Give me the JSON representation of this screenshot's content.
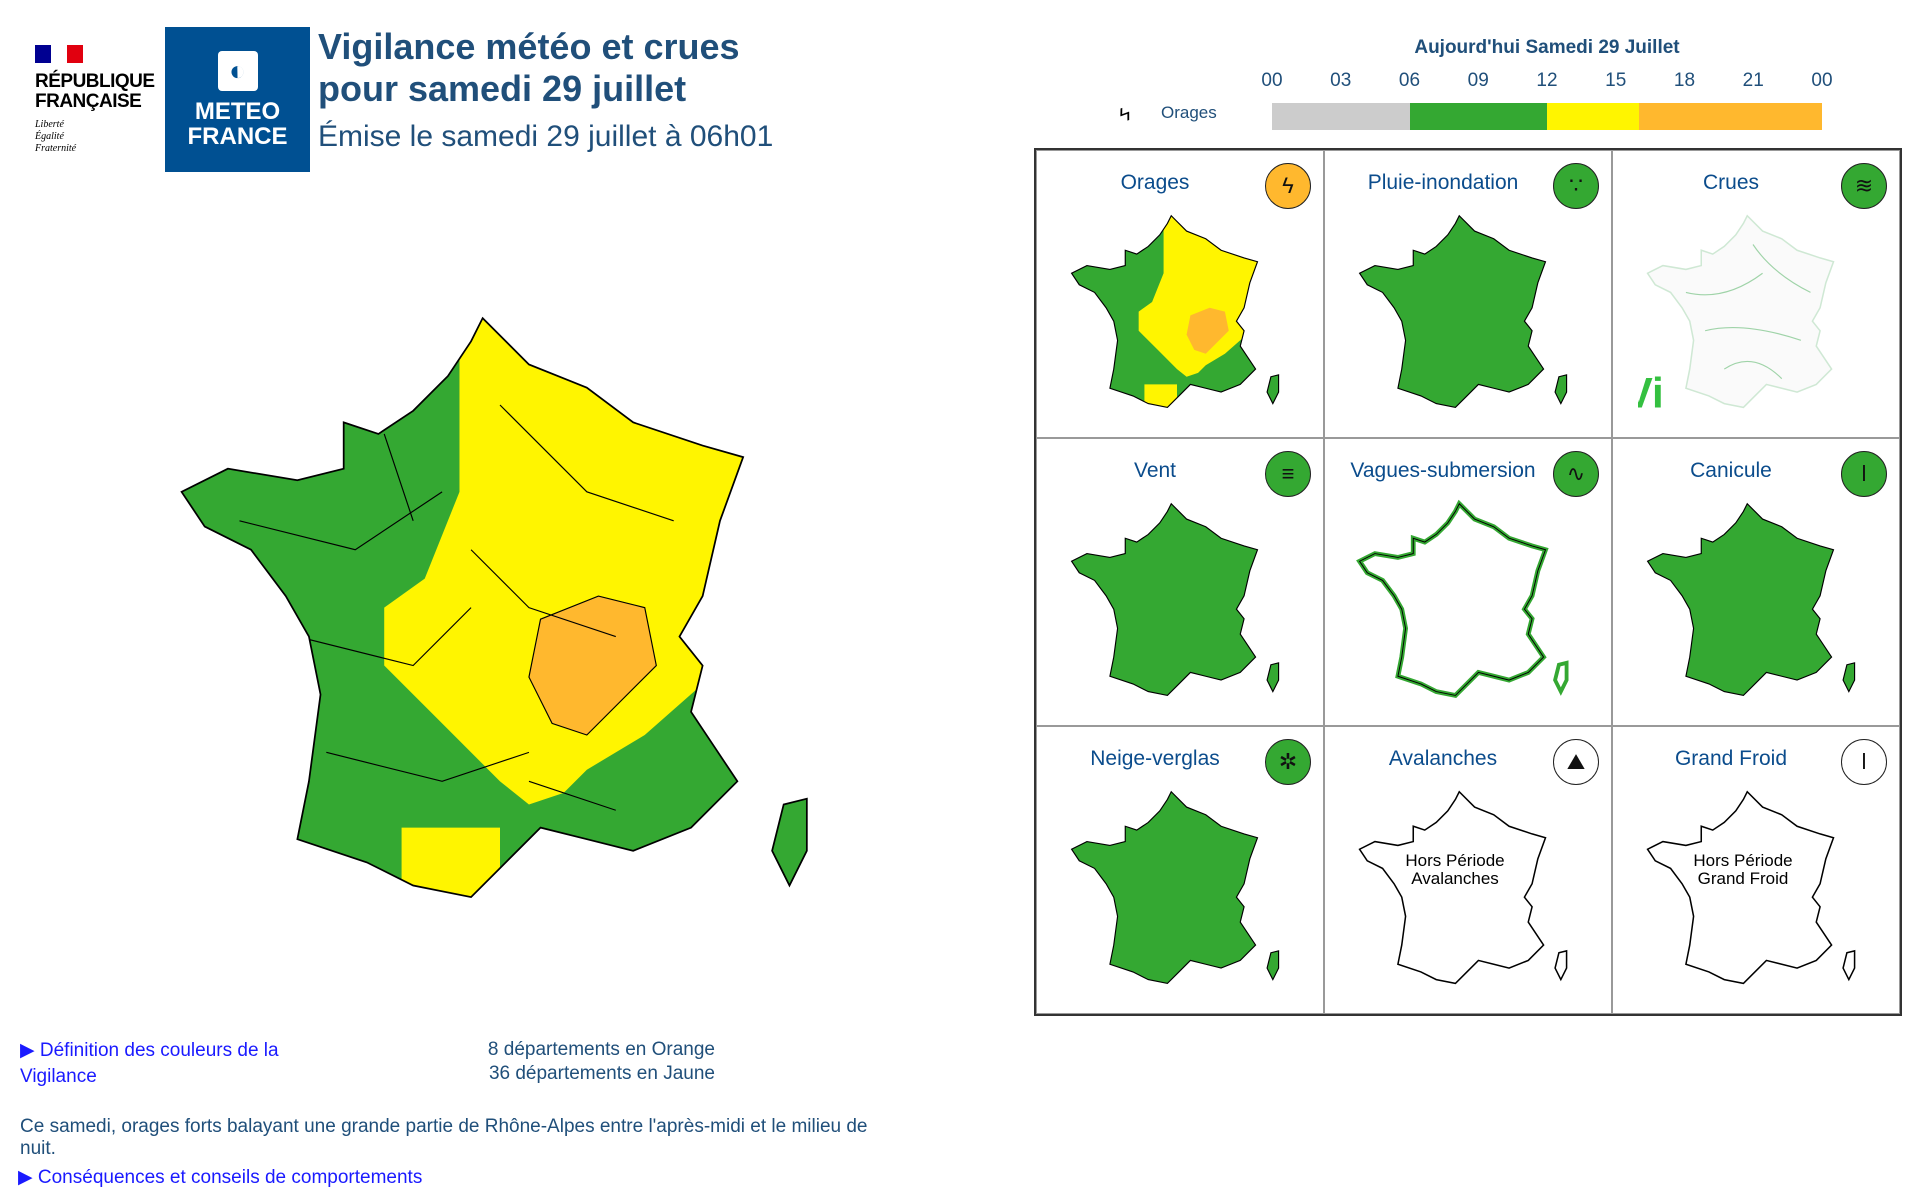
{
  "header": {
    "rf_logo": {
      "name": "RÉPUBLIQUE FRANÇAISE",
      "motto": [
        "Liberté",
        "Égalité",
        "Fraternité"
      ]
    },
    "mf_logo": {
      "text": "METEO FRANCE"
    },
    "title_line1": "Vigilance météo et crues",
    "title_line2": "pour samedi 29 juillet",
    "subtitle": "Émise le samedi 29 juillet à 06h01"
  },
  "timeline": {
    "title": "Aujourd'hui Samedi 29 Juillet",
    "hours": [
      "00",
      "03",
      "06",
      "09",
      "12",
      "15",
      "18",
      "21",
      "00"
    ],
    "phenomenon": "Orages",
    "segments": [
      {
        "from": 0,
        "to": 6,
        "color": "#cccccc"
      },
      {
        "from": 6,
        "to": 12,
        "color": "#34a832"
      },
      {
        "from": 12,
        "to": 16,
        "color": "#fff500"
      },
      {
        "from": 16,
        "to": 24,
        "color": "#ffb82e"
      }
    ]
  },
  "colors": {
    "green": "#34a832",
    "yellow": "#fff500",
    "orange": "#ffb82e",
    "title": "#204f7a",
    "link": "#1a1aff"
  },
  "panels": [
    {
      "title": "Orages",
      "icon": "lightning-icon",
      "glyph": "ϟ",
      "icon_color": "#ffb82e",
      "map": "orages"
    },
    {
      "title": "Pluie-inondation",
      "icon": "rain-flood-icon",
      "glyph": "∵",
      "icon_color": "#34a832",
      "map": "green"
    },
    {
      "title": "Crues",
      "icon": "waves-icon",
      "glyph": "≋",
      "icon_color": "#34a832",
      "map": "crues"
    },
    {
      "title": "Vent",
      "icon": "wind-icon",
      "glyph": "≡",
      "icon_color": "#34a832",
      "map": "green"
    },
    {
      "title": "Vagues-submersion",
      "icon": "wave-icon",
      "glyph": "∿",
      "icon_color": "#34a832",
      "map": "vagues"
    },
    {
      "title": "Canicule",
      "icon": "thermometer-icon",
      "glyph": "ǀ",
      "icon_color": "#34a832",
      "map": "green"
    },
    {
      "title": "Neige-verglas",
      "icon": "snow-icon",
      "glyph": "✲",
      "icon_color": "#34a832",
      "map": "green"
    },
    {
      "title": "Avalanches",
      "icon": "avalanche-icon",
      "glyph": "⛰",
      "icon_color": "#ffffff",
      "map": "off",
      "off_text": [
        "Hors Période",
        "Avalanches"
      ]
    },
    {
      "title": "Grand Froid",
      "icon": "thermometer-icon",
      "glyph": "ǀ",
      "icon_color": "#ffffff",
      "map": "off",
      "off_text": [
        "Hors Période",
        "Grand Froid"
      ]
    }
  ],
  "footer": {
    "definition_link": "Définition des couleurs de la Vigilance",
    "count_orange": "8 départements en Orange",
    "count_yellow": "36 départements en Jaune",
    "bulletin": "Ce samedi, orages forts balayant une grande partie de Rhône-Alpes entre l'après-midi et le milieu de nuit.",
    "consequences_link": "Conséquences et conseils de comportements"
  }
}
